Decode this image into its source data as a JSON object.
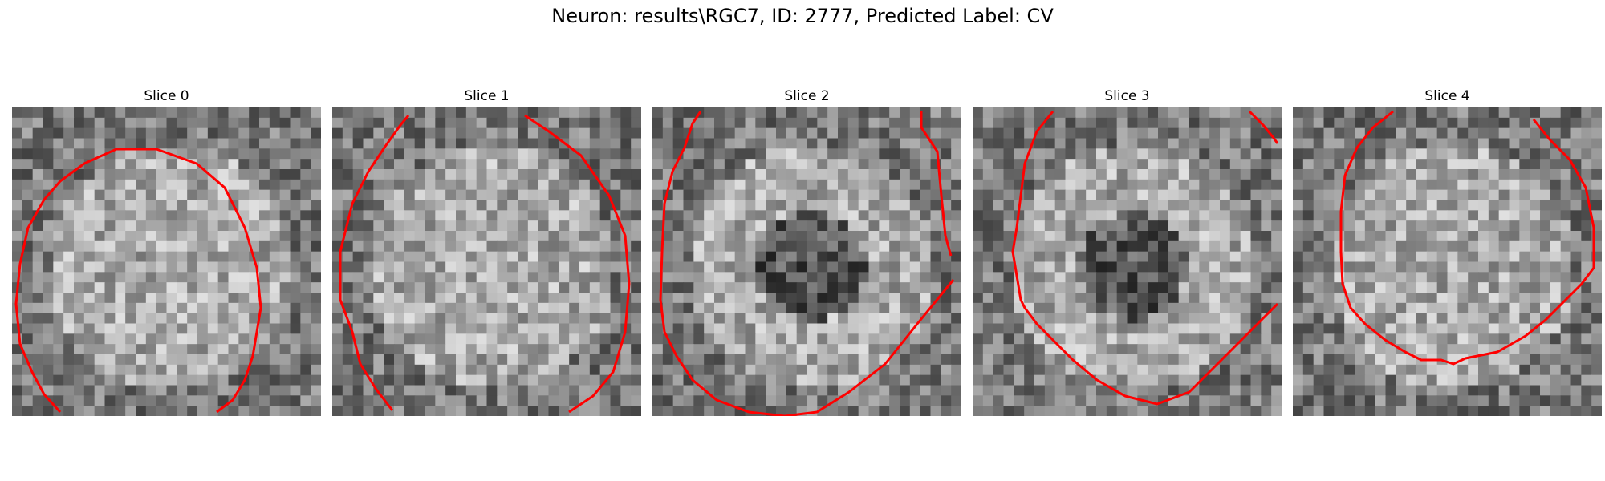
{
  "figure": {
    "title": "Neuron: results\\RGC7, ID: 2777, Predicted Label: CV"
  },
  "contour_color": "#ff0000",
  "colormap": "gray",
  "grid_cells": 30,
  "slices": [
    {
      "title": "Slice 0",
      "seed": 11,
      "dark_center": false
    },
    {
      "title": "Slice 1",
      "seed": 23,
      "dark_center": false
    },
    {
      "title": "Slice 2",
      "seed": 37,
      "dark_center": true
    },
    {
      "title": "Slice 3",
      "seed": 51,
      "dark_center": true
    },
    {
      "title": "Slice 4",
      "seed": 67,
      "dark_center": false
    }
  ]
}
